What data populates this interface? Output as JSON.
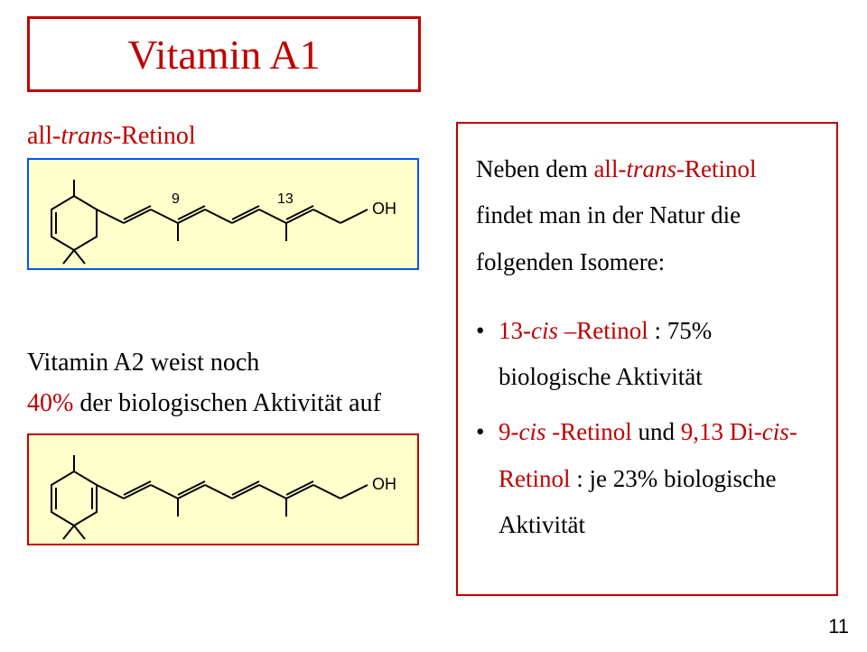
{
  "title": "Vitamin A1",
  "subtitle1_html": "all-<i>trans</i>-Retinol",
  "left_text_line1": "Vitamin A2 weist noch",
  "left_text_red": "40%",
  "left_text_line2_rest": " der biologischen Aktivität auf",
  "right_intro_pre": "Neben dem ",
  "right_intro_kw_html": "all-<i>trans</i>-Retinol",
  "right_intro_post": " findet man in der Natur die folgenden Isomere:",
  "bullet1_kw_html": "13-<i>cis</i> –Retinol",
  "bullet1_rest": " : 75% biologische Aktivität",
  "bullet2_kw_html": "9-<i>cis</i> -Retinol",
  "bullet2_mid": " und ",
  "bullet2_kw2_html": "9,13 Di-<i>cis</i>-Retinol",
  "bullet2_rest": " : je 23% biologische Aktivität",
  "mol1": {
    "label9": "9",
    "label13": "13",
    "labelOH": "OH"
  },
  "mol2": {
    "labelOH": "OH"
  },
  "page_number": "11",
  "colors": {
    "red": "#c00000",
    "blue_border": "#0054ff",
    "mol_bg": "#ffffcc"
  }
}
